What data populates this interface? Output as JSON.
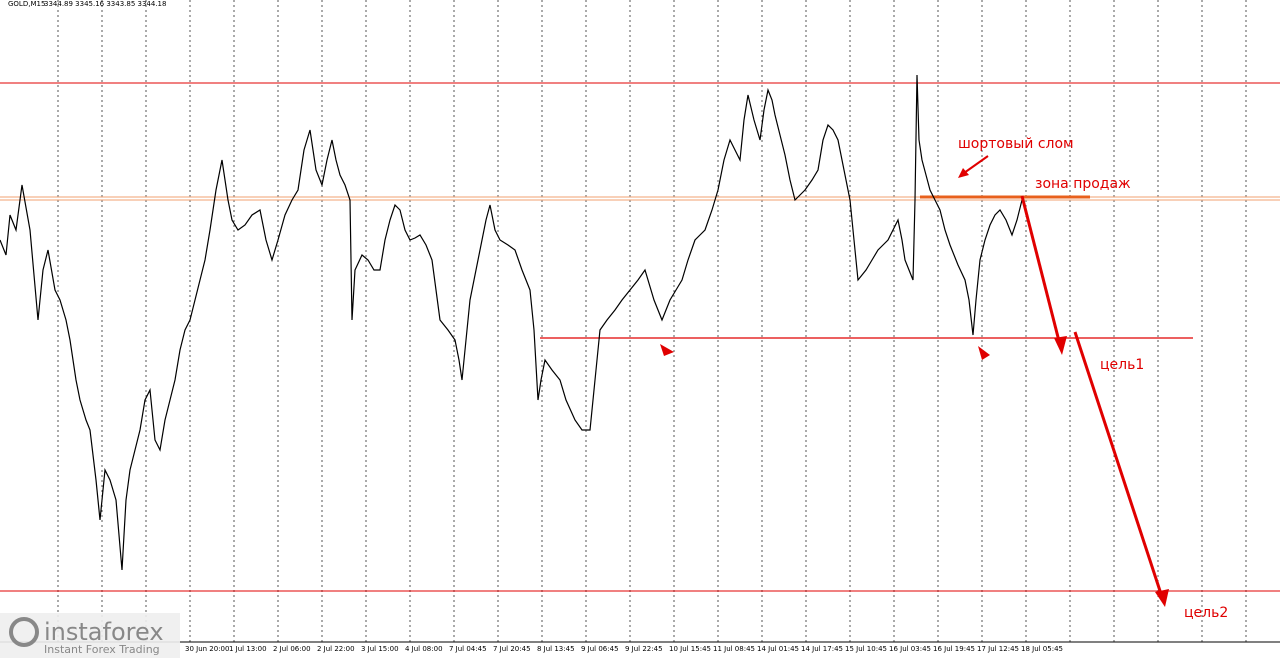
{
  "header": {
    "symbol": "GOLD,M15",
    "ohlc": "3344.89 3345.16 3343.85 3344.18"
  },
  "time_labels": [
    "30 Jun 20:00",
    "1 Jul 13:00",
    "2 Jul 06:00",
    "2 Jul 22:00",
    "3 Jul 15:00",
    "4 Jul 08:00",
    "7 Jul 04:45",
    "7 Jul 20:45",
    "8 Jul 13:45",
    "9 Jul 06:45",
    "9 Jul 22:45",
    "10 Jul 15:45",
    "11 Jul 08:45",
    "14 Jul 01:45",
    "14 Jul 17:45",
    "15 Jul 10:45",
    "16 Jul 03:45",
    "16 Jul 19:45",
    "17 Jul 12:45",
    "18 Jul 05:45"
  ],
  "annotations": {
    "short_break": "шортовый слом",
    "sell_zone": "зона продаж",
    "target1": "цель1",
    "target2": "цель2"
  },
  "logo": {
    "brand": "instaforex",
    "tagline": "Instant Forex Trading"
  }
}
